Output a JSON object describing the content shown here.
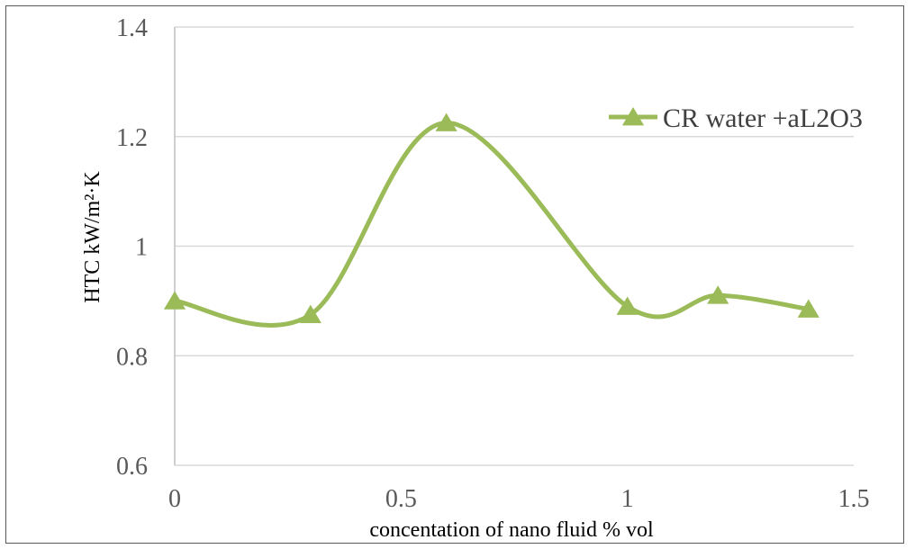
{
  "chart_data": {
    "type": "line",
    "title": "",
    "xlabel": "concentation of nano fluid  % vol",
    "ylabel": "HTC kW/m²·K",
    "xlim": [
      0,
      1.5
    ],
    "ylim": [
      0.6,
      1.4
    ],
    "x_ticks": [
      0,
      0.5,
      1,
      1.5
    ],
    "x_tick_labels": [
      "0",
      "0.5",
      "1",
      "1.5"
    ],
    "y_ticks": [
      0.6,
      0.8,
      1,
      1.2,
      1.4
    ],
    "y_tick_labels": [
      "0.6",
      "0.8",
      "1",
      "1.2",
      "1.4"
    ],
    "grid": "horizontal",
    "smooth": true,
    "legend_position": "top-right",
    "series": [
      {
        "name": "CR water +aL2O3",
        "color": "#9bbb59",
        "marker": "triangle",
        "x": [
          0,
          0.3,
          0.6,
          1.0,
          1.2,
          1.4
        ],
        "y": [
          0.9,
          0.875,
          1.225,
          0.89,
          0.91,
          0.885
        ]
      }
    ]
  }
}
